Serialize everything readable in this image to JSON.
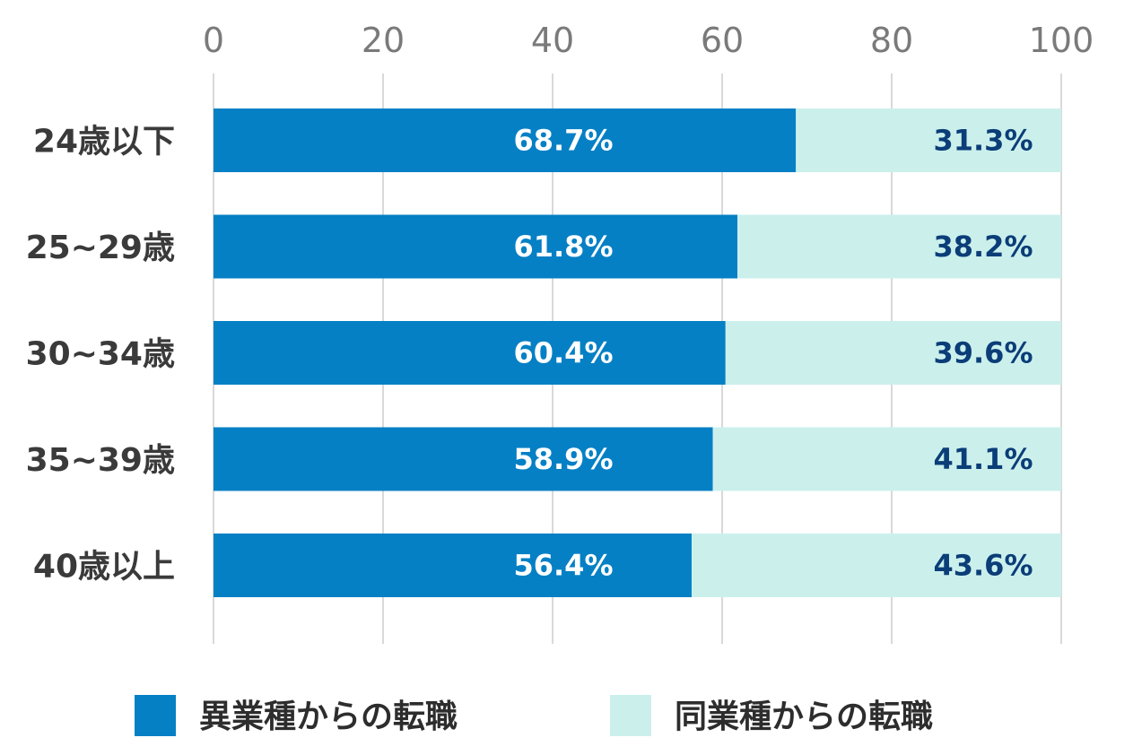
{
  "chart_data": {
    "type": "bar",
    "orientation": "horizontal",
    "stacked": true,
    "categories": [
      "24歳以下",
      "25~29歳",
      "30~34歳",
      "35~39歳",
      "40歳以上"
    ],
    "series": [
      {
        "name": "異業種からの転職",
        "color": "#0580C5",
        "label_color": "#ffffff",
        "values": [
          68.7,
          61.8,
          60.4,
          58.9,
          56.4
        ],
        "labels": [
          "68.7%",
          "61.8%",
          "60.4%",
          "58.9%",
          "56.4%"
        ]
      },
      {
        "name": "同業種からの転職",
        "color": "#CBF0EC",
        "label_color": "#0B3D78",
        "values": [
          31.3,
          38.2,
          39.6,
          41.1,
          43.6
        ],
        "labels": [
          "31.3%",
          "38.2%",
          "39.6%",
          "41.1%",
          "43.6%"
        ]
      }
    ],
    "xlim": [
      0,
      100
    ],
    "xticks": [
      "0",
      "20",
      "40",
      "60",
      "80",
      "100"
    ],
    "xaxis_position": "top",
    "grid": true,
    "legend_position": "bottom",
    "title": "",
    "xlabel": "",
    "ylabel": ""
  }
}
